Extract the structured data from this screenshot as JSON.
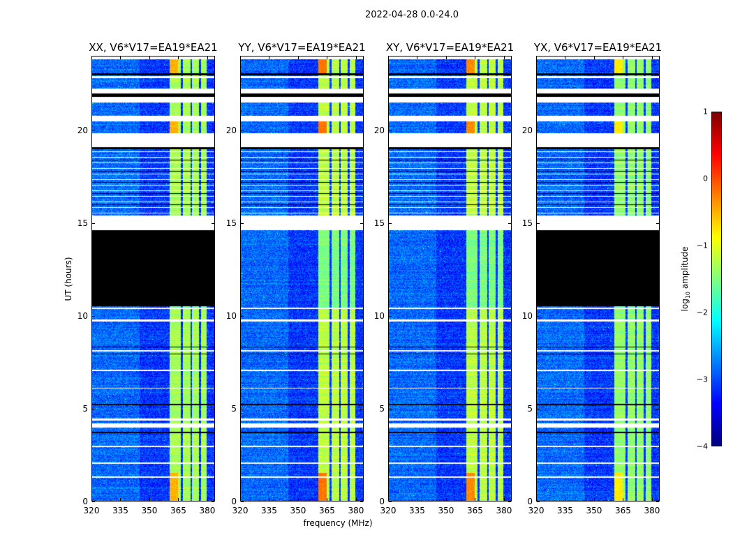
{
  "chart_data": {
    "type": "heatmap",
    "title": "2022-04-28 0.0-24.0",
    "xlabel": "frequency (MHz)",
    "ylabel": "UT (hours)",
    "xlim": [
      320,
      384
    ],
    "ylim": [
      0,
      24
    ],
    "xticks": [
      "320",
      "335",
      "350",
      "365",
      "380"
    ],
    "yticks": [
      "0",
      "5",
      "10",
      "15",
      "20"
    ],
    "active_band_mhz": [
      360.5,
      380
    ],
    "channel_gaps_mhz": [
      367,
      372,
      376.5
    ],
    "background_level": -3.0,
    "flagged_intervals_hours": [
      [
        23.85,
        24.0
      ],
      [
        22.85,
        22.95
      ],
      [
        22.0,
        22.25
      ],
      [
        21.5,
        21.8
      ],
      [
        20.5,
        20.8
      ],
      [
        19.1,
        19.85
      ],
      [
        14.6,
        15.4
      ],
      [
        10.35,
        10.45
      ],
      [
        9.7,
        9.8
      ],
      [
        8.05,
        8.12
      ],
      [
        7.0,
        7.08
      ],
      [
        6.05,
        6.12
      ],
      [
        4.35,
        4.45
      ],
      [
        3.95,
        4.2
      ],
      [
        2.9,
        2.98
      ],
      [
        2.0,
        2.08
      ],
      [
        1.25,
        1.32
      ]
    ],
    "zero_intervals_hours": [
      [
        23.0,
        23.1
      ],
      [
        21.8,
        22.0
      ],
      [
        19.0,
        19.1
      ],
      [
        8.28,
        8.34
      ],
      [
        7.9,
        7.95
      ],
      [
        5.18,
        5.24
      ],
      [
        3.65,
        3.72
      ]
    ],
    "panels": [
      {
        "title": "XX, V6*V17=EA19*EA21",
        "band_level": -1.3,
        "peak_level": -0.5,
        "zero_intervals_hours": [
          [
            10.5,
            14.6
          ]
        ]
      },
      {
        "title": "YY, V6*V17=EA19*EA21",
        "band_level": -1.2,
        "peak_level": -0.2,
        "zero_intervals_hours": []
      },
      {
        "title": "XY, V6*V17=EA19*EA21",
        "band_level": -1.2,
        "peak_level": -0.3,
        "zero_intervals_hours": []
      },
      {
        "title": "YX, V6*V17=EA19*EA21",
        "band_level": -1.4,
        "peak_level": -0.8,
        "zero_intervals_hours": [
          [
            10.5,
            14.6
          ]
        ]
      }
    ],
    "colorbar": {
      "label_prefix": "log",
      "label_sub": "10",
      "label_suffix": " amplitude",
      "range": [
        -4,
        1
      ],
      "ticks": [
        "1",
        "0",
        "−1",
        "−2",
        "−3",
        "−4"
      ],
      "colormap": "jet"
    }
  }
}
